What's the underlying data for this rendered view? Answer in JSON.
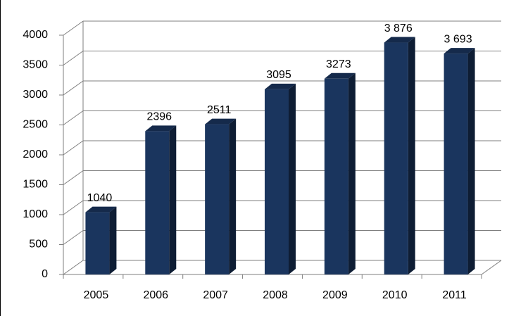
{
  "chart_data": {
    "type": "bar3d",
    "categories": [
      "2005",
      "2006",
      "2007",
      "2008",
      "2009",
      "2010",
      "2011"
    ],
    "values": [
      1040,
      2396,
      2511,
      3095,
      3273,
      3876,
      3693
    ],
    "value_labels": [
      "1040",
      "2396",
      "2511",
      "3095",
      "3273",
      "3 876",
      "3 693"
    ],
    "color": "#1a355e",
    "ylim": [
      0,
      4000
    ],
    "yticks": [
      0,
      500,
      1000,
      1500,
      2000,
      2500,
      3000,
      3500,
      4000
    ],
    "grid": true
  }
}
